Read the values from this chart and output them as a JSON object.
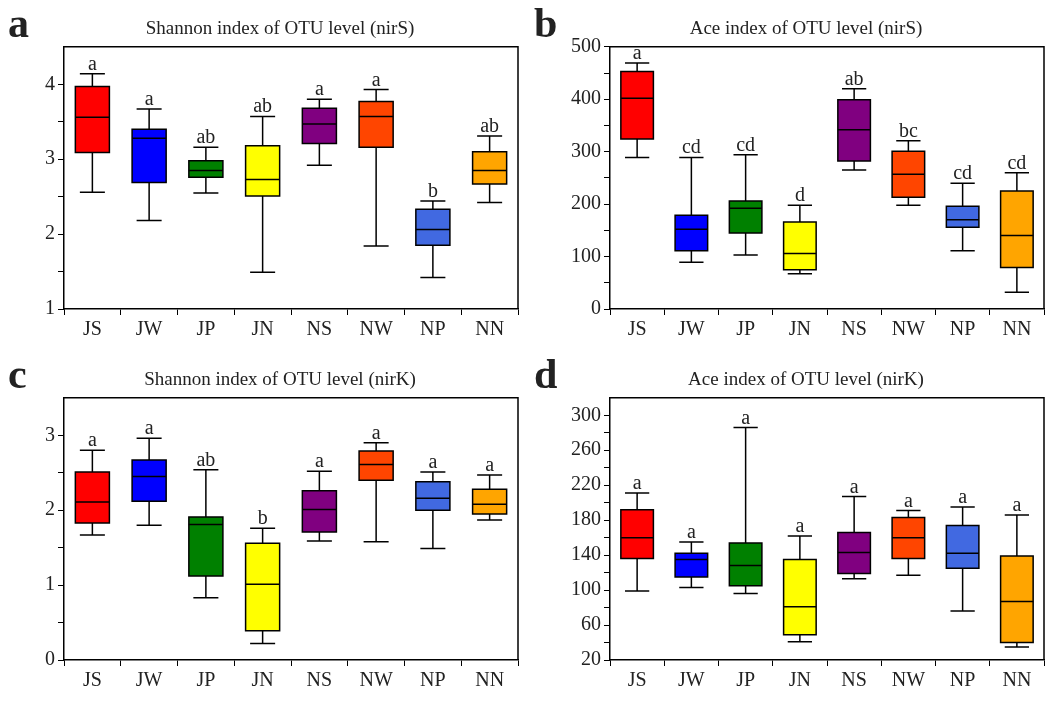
{
  "chart_data": [
    {
      "type": "box",
      "title": "Shannon index of OTU level (nirS)",
      "categories": [
        "JS",
        "JW",
        "JP",
        "JN",
        "NS",
        "NW",
        "NP",
        "NN"
      ],
      "colors": [
        "#ff0000",
        "#0000ff",
        "#008000",
        "#ffff00",
        "#800080",
        "#ff4500",
        "#4169e1",
        "#ffa500"
      ],
      "boxes": [
        {
          "low": 2.56,
          "q1": 3.09,
          "median": 3.56,
          "q3": 3.97,
          "high": 4.14
        },
        {
          "low": 2.18,
          "q1": 2.69,
          "median": 3.28,
          "q3": 3.4,
          "high": 3.67
        },
        {
          "low": 2.55,
          "q1": 2.76,
          "median": 2.85,
          "q3": 2.98,
          "high": 3.16
        },
        {
          "low": 1.49,
          "q1": 2.51,
          "median": 2.73,
          "q3": 3.18,
          "high": 3.57
        },
        {
          "low": 2.92,
          "q1": 3.21,
          "median": 3.47,
          "q3": 3.68,
          "high": 3.8
        },
        {
          "low": 1.84,
          "q1": 3.16,
          "median": 3.57,
          "q3": 3.77,
          "high": 3.93
        },
        {
          "low": 1.42,
          "q1": 1.85,
          "median": 2.06,
          "q3": 2.33,
          "high": 2.44
        },
        {
          "low": 2.42,
          "q1": 2.67,
          "median": 2.85,
          "q3": 3.1,
          "high": 3.31
        }
      ],
      "ylim": [
        1,
        4.5
      ],
      "yticks": [
        1,
        {
          "value": 1.5,
          "label": null
        },
        2,
        {
          "value": 2.5,
          "label": null
        },
        3,
        {
          "value": 3.5,
          "label": null
        },
        4
      ],
      "annotations": [
        "a",
        {
          "text": "a",
          "x": "JS",
          "y": 4.14
        },
        {
          "text": "a",
          "x": "JW",
          "y": 3.67
        },
        {
          "text": "ab",
          "x": "JP",
          "y": 3.16
        },
        {
          "text": "ab",
          "x": "JN",
          "y": 3.57
        },
        {
          "text": "a",
          "x": "NS",
          "y": 3.8
        },
        {
          "text": "a",
          "x": "NW",
          "y": 3.93
        },
        {
          "text": "b",
          "x": "NP",
          "y": 2.44
        },
        {
          "text": "ab",
          "x": "NN",
          "y": 3.31
        }
      ]
    },
    {
      "type": "box",
      "title": "Ace index of OTU level (nirS)",
      "categories": [
        "JS",
        "JW",
        "JP",
        "JN",
        "NS",
        "NW",
        "NP",
        "NN"
      ],
      "colors": [
        "#ff0000",
        "#0000ff",
        "#008000",
        "#ffff00",
        "#800080",
        "#ff4500",
        "#4169e1",
        "#ffa500"
      ],
      "boxes": [
        {
          "low": 289,
          "q1": 324,
          "median": 402,
          "q3": 453,
          "high": 469
        },
        {
          "low": 89,
          "q1": 111,
          "median": 152,
          "q3": 179,
          "high": 289
        },
        {
          "low": 103,
          "q1": 145,
          "median": 192,
          "q3": 206,
          "high": 294
        },
        {
          "low": 67,
          "q1": 75,
          "median": 106,
          "q3": 166,
          "high": 198
        },
        {
          "low": 265,
          "q1": 282,
          "median": 342,
          "q3": 399,
          "high": 420
        },
        {
          "low": 198,
          "q1": 213,
          "median": 257,
          "q3": 301,
          "high": 321
        },
        {
          "low": 111,
          "q1": 156,
          "median": 170,
          "q3": 196,
          "high": 240
        },
        {
          "low": 32,
          "q1": 79,
          "median": 140,
          "q3": 225,
          "high": 260
        }
      ],
      "ylim": [
        0,
        500
      ],
      "yticks": [
        0,
        {
          "value": 50,
          "label": null
        },
        100,
        {
          "value": 150,
          "label": null
        },
        200,
        {
          "value": 250,
          "label": null
        },
        300,
        {
          "value": 350,
          "label": null
        },
        400,
        {
          "value": 450,
          "label": null
        },
        500
      ],
      "annotations": [
        "b",
        {
          "text": "a",
          "x": "JS",
          "y": 469
        },
        {
          "text": "cd",
          "x": "JW",
          "y": 289
        },
        {
          "text": "cd",
          "x": "JP",
          "y": 294
        },
        {
          "text": "d",
          "x": "JN",
          "y": 198
        },
        {
          "text": "ab",
          "x": "NS",
          "y": 420
        },
        {
          "text": "bc",
          "x": "NW",
          "y": 321
        },
        {
          "text": "cd",
          "x": "NP",
          "y": 240
        },
        {
          "text": "cd",
          "x": "NN",
          "y": 260
        }
      ]
    },
    {
      "type": "box",
      "title": "Shannon index of OTU level (nirK)",
      "categories": [
        "JS",
        "JW",
        "JP",
        "JN",
        "NS",
        "NW",
        "NP",
        "NN"
      ],
      "colors": [
        "#ff0000",
        "#0000ff",
        "#008000",
        "#ffff00",
        "#800080",
        "#ff4500",
        "#4169e1",
        "#ffa500"
      ],
      "boxes": [
        {
          "low": 1.67,
          "q1": 1.83,
          "median": 2.11,
          "q3": 2.51,
          "high": 2.8
        },
        {
          "low": 1.8,
          "q1": 2.12,
          "median": 2.45,
          "q3": 2.67,
          "high": 2.96
        },
        {
          "low": 0.83,
          "q1": 1.12,
          "median": 1.81,
          "q3": 1.91,
          "high": 2.54
        },
        {
          "low": 0.22,
          "q1": 0.39,
          "median": 1.01,
          "q3": 1.56,
          "high": 1.76
        },
        {
          "low": 1.59,
          "q1": 1.71,
          "median": 2.01,
          "q3": 2.26,
          "high": 2.52
        },
        {
          "low": 1.58,
          "q1": 2.4,
          "median": 2.61,
          "q3": 2.79,
          "high": 2.9
        },
        {
          "low": 1.49,
          "q1": 2.0,
          "median": 2.16,
          "q3": 2.38,
          "high": 2.51
        },
        {
          "low": 1.87,
          "q1": 1.95,
          "median": 2.08,
          "q3": 2.28,
          "high": 2.47
        }
      ],
      "ylim": [
        0,
        3.5
      ],
      "yticks": [
        0,
        {
          "value": 0.5,
          "label": null
        },
        1,
        {
          "value": 1.5,
          "label": null
        },
        2,
        {
          "value": 2.5,
          "label": null
        },
        3
      ],
      "annotations": [
        "c",
        {
          "text": "a",
          "x": "JS",
          "y": 2.8
        },
        {
          "text": "a",
          "x": "JW",
          "y": 2.96
        },
        {
          "text": "ab",
          "x": "JP",
          "y": 2.54
        },
        {
          "text": "b",
          "x": "JN",
          "y": 1.76
        },
        {
          "text": "a",
          "x": "NS",
          "y": 2.52
        },
        {
          "text": "a",
          "x": "NW",
          "y": 2.9
        },
        {
          "text": "a",
          "x": "NP",
          "y": 2.51
        },
        {
          "text": "a",
          "x": "NN",
          "y": 2.47
        }
      ]
    },
    {
      "type": "box",
      "title": "Ace index of OTU level (nirK)",
      "categories": [
        "JS",
        "JW",
        "JP",
        "JN",
        "NS",
        "NW",
        "NP",
        "NN"
      ],
      "colors": [
        "#ff0000",
        "#0000ff",
        "#008000",
        "#ffff00",
        "#800080",
        "#ff4500",
        "#4169e1",
        "#ffa500"
      ],
      "boxes": [
        {
          "low": 99,
          "q1": 136,
          "median": 160,
          "q3": 192,
          "high": 211
        },
        {
          "low": 103,
          "q1": 115,
          "median": 135,
          "q3": 142,
          "high": 155
        },
        {
          "low": 96,
          "q1": 105,
          "median": 128,
          "q3": 154,
          "high": 286
        },
        {
          "low": 41,
          "q1": 49,
          "median": 81,
          "q3": 135,
          "high": 162
        },
        {
          "low": 113,
          "q1": 119,
          "median": 143,
          "q3": 166,
          "high": 207
        },
        {
          "low": 117,
          "q1": 136,
          "median": 160,
          "q3": 183,
          "high": 191
        },
        {
          "low": 76,
          "q1": 125,
          "median": 142,
          "q3": 174,
          "high": 195
        },
        {
          "low": 35,
          "q1": 40,
          "median": 87,
          "q3": 139,
          "high": 186
        }
      ],
      "ylim": [
        20,
        320
      ],
      "yticks": [
        20,
        {
          "value": 40,
          "label": null
        },
        60,
        {
          "value": 80,
          "label": null
        },
        100,
        {
          "value": 120,
          "label": null
        },
        140,
        {
          "value": 160,
          "label": null
        },
        180,
        {
          "value": 200,
          "label": null
        },
        220,
        {
          "value": 240,
          "label": null
        },
        260,
        {
          "value": 280,
          "label": null
        },
        300
      ],
      "annotations": [
        "d",
        {
          "text": "a",
          "x": "JS",
          "y": 211
        },
        {
          "text": "a",
          "x": "JW",
          "y": 155
        },
        {
          "text": "a",
          "x": "JP",
          "y": 286
        },
        {
          "text": "a",
          "x": "JN",
          "y": 162
        },
        {
          "text": "a",
          "x": "NS",
          "y": 207
        },
        {
          "text": "a",
          "x": "NW",
          "y": 191
        },
        {
          "text": "a",
          "x": "NP",
          "y": 195
        },
        {
          "text": "a",
          "x": "NN",
          "y": 186
        }
      ]
    }
  ]
}
